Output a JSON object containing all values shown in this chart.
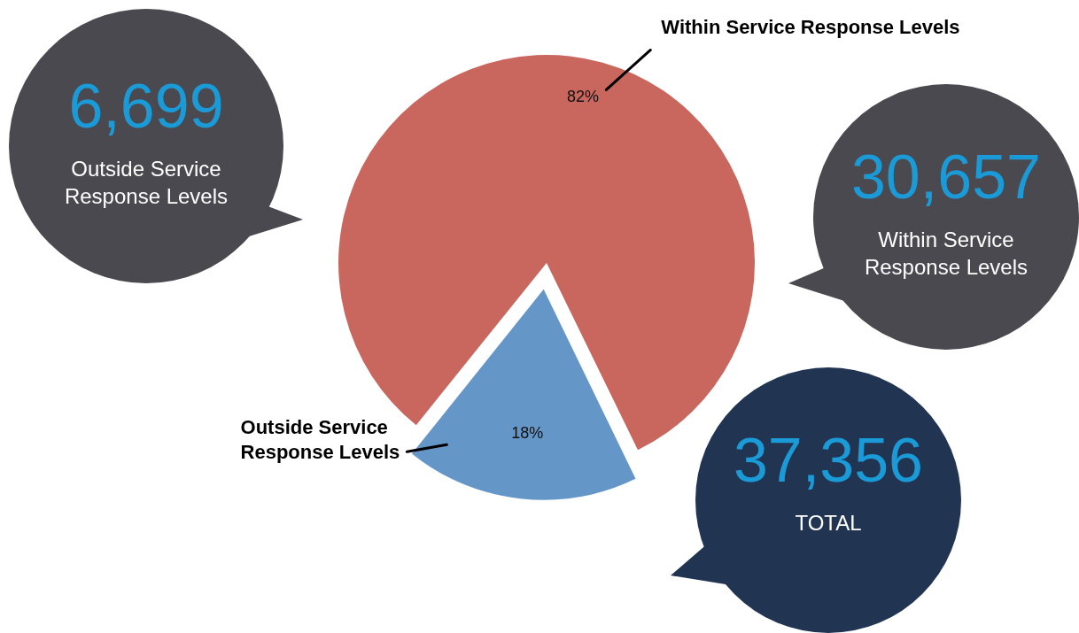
{
  "chart_data": {
    "type": "pie",
    "categories": [
      "Within Service Response Levels",
      "Outside Service Response Levels"
    ],
    "values": [
      82,
      18
    ],
    "colors": [
      "#c9675f",
      "#6596c8"
    ],
    "value_labels": [
      "82%",
      "18%"
    ],
    "legend": false,
    "annotations": [
      "6,699",
      "Outside Service Response Levels",
      "30,657",
      "Within Service Response Levels",
      "37,356",
      "TOTAL"
    ]
  }
}
